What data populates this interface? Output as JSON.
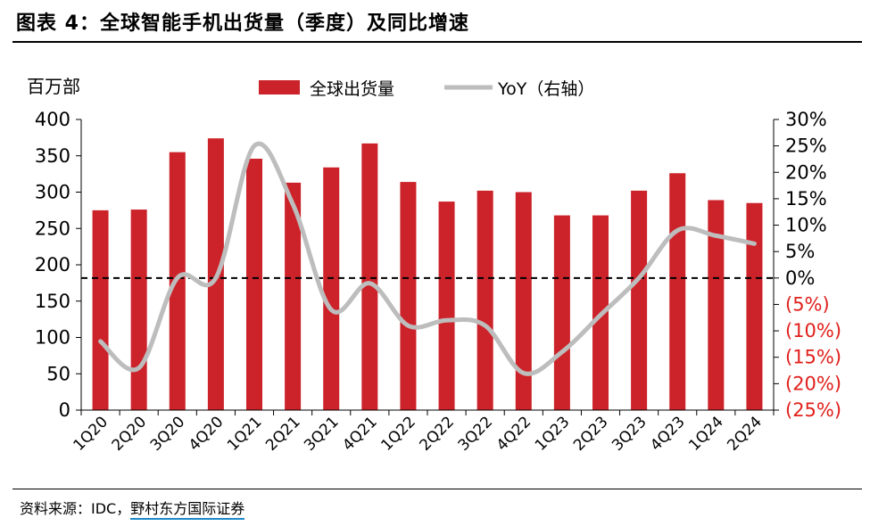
{
  "figure": {
    "title": "图表 4：全球智能手机出货量（季度）及同比增速",
    "source_prefix": "资料来源：IDC，",
    "source_link": "野村东方国际证券"
  },
  "colors": {
    "bar": "#cc2229",
    "line": "#bdbdbd",
    "negative_label": "#e0201c",
    "axis": "#000000"
  },
  "chart_data": {
    "type": "bar",
    "title": "全球智能手机出货量（季度）",
    "categories": [
      "1Q20",
      "2Q20",
      "3Q20",
      "4Q20",
      "1Q21",
      "2Q21",
      "3Q21",
      "4Q21",
      "1Q22",
      "2Q22",
      "3Q22",
      "4Q22",
      "1Q23",
      "2Q23",
      "3Q23",
      "4Q23",
      "1Q24",
      "2Q24"
    ],
    "series": [
      {
        "name": "全球出货量",
        "type": "bar",
        "axis": "left",
        "values": [
          275,
          276,
          355,
          374,
          346,
          313,
          334,
          367,
          314,
          287,
          302,
          300,
          268,
          268,
          302,
          326,
          289,
          285
        ]
      },
      {
        "name": "YoY（右轴）",
        "type": "line",
        "axis": "right",
        "smooth": true,
        "values": [
          -12,
          -17,
          0,
          0,
          25,
          14,
          -6,
          -1,
          -9,
          -8,
          -9,
          -18,
          -14,
          -7,
          0,
          9,
          8,
          6.5
        ]
      }
    ],
    "left_axis": {
      "label": "百万部",
      "min": 0,
      "max": 400,
      "step": 50,
      "ticks": [
        "0",
        "50",
        "100",
        "150",
        "200",
        "250",
        "300",
        "350",
        "400"
      ]
    },
    "right_axis": {
      "min": -25,
      "max": 30,
      "step": 5,
      "ticks": [
        "(25%)",
        "(20%)",
        "(15%)",
        "(10%)",
        "(5%)",
        "0%",
        "5%",
        "10%",
        "15%",
        "20%",
        "25%",
        "30%"
      ]
    },
    "reference_line": {
      "axis": "right",
      "value": 0,
      "style": "dashed"
    },
    "legend": {
      "position": "top-center",
      "entries": [
        "全球出货量",
        "YoY（右轴）"
      ]
    }
  }
}
